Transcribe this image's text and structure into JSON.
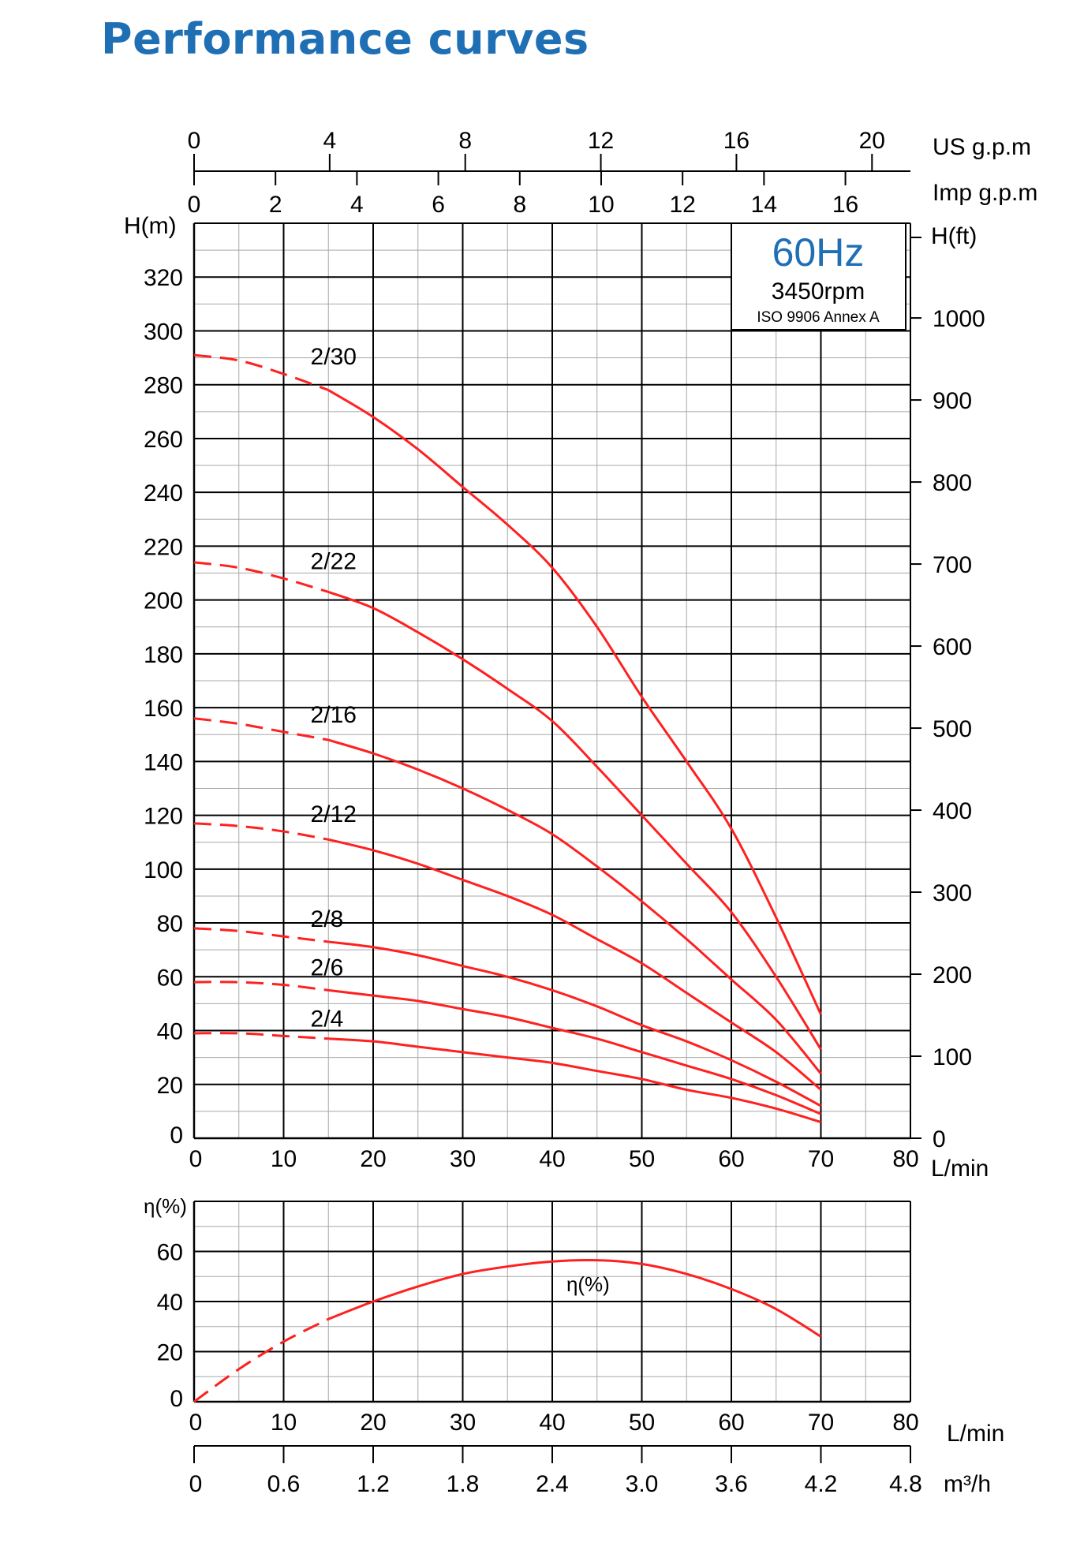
{
  "page": {
    "title": "Performance curves",
    "colors": {
      "title": "#1f6fb5",
      "curve": "#ff2020",
      "grid": "#000000",
      "minor_grid": "#a8a8a8"
    }
  },
  "info_box": {
    "frequency": "60Hz",
    "speed": "3450rpm",
    "standard": "ISO 9906 Annex A"
  },
  "chart_data": [
    {
      "type": "line",
      "title": "",
      "x_unit": "L/min",
      "xlim": [
        0,
        80
      ],
      "x_ticks": [
        0,
        10,
        20,
        30,
        40,
        50,
        60,
        70,
        80
      ],
      "ylabel_left": "H(m)",
      "ylim": [
        0,
        340
      ],
      "y_ticks": [
        0,
        20,
        40,
        60,
        80,
        100,
        120,
        140,
        160,
        180,
        200,
        220,
        240,
        260,
        280,
        300,
        320
      ],
      "ylabel_right": "H(ft)",
      "y_right_ticks": [
        0,
        100,
        200,
        300,
        400,
        500,
        600,
        700,
        800,
        900,
        1000
      ],
      "top_axes": [
        {
          "unit": "US g.p.m",
          "ticks": [
            0,
            4,
            8,
            12,
            16,
            20
          ]
        },
        {
          "unit": "Imp g.p.m",
          "ticks": [
            0,
            2,
            4,
            6,
            8,
            10,
            12,
            14,
            16
          ]
        }
      ],
      "grid": true,
      "dashed_until_x": 15,
      "series": [
        {
          "name": "2/30",
          "x": [
            0,
            5,
            10,
            15,
            20,
            25,
            30,
            35,
            40,
            45,
            50,
            55,
            60,
            65,
            70
          ],
          "y": [
            291,
            289,
            284,
            278,
            268,
            256,
            242,
            228,
            212,
            190,
            164,
            140,
            115,
            82,
            46
          ]
        },
        {
          "name": "2/22",
          "x": [
            0,
            5,
            10,
            15,
            20,
            25,
            30,
            35,
            40,
            45,
            50,
            55,
            60,
            65,
            70
          ],
          "y": [
            214,
            212,
            208,
            203,
            197,
            188,
            178,
            167,
            155,
            138,
            120,
            102,
            84,
            60,
            33
          ]
        },
        {
          "name": "2/16",
          "x": [
            0,
            5,
            10,
            15,
            20,
            25,
            30,
            35,
            40,
            45,
            50,
            55,
            60,
            65,
            70
          ],
          "y": [
            156,
            154,
            151,
            148,
            143,
            137,
            130,
            122,
            113,
            101,
            88,
            74,
            59,
            44,
            24
          ]
        },
        {
          "name": "2/12",
          "x": [
            0,
            5,
            10,
            15,
            20,
            25,
            30,
            35,
            40,
            45,
            50,
            55,
            60,
            65,
            70
          ],
          "y": [
            117,
            116,
            114,
            111,
            107,
            102,
            96,
            90,
            83,
            74,
            65,
            54,
            43,
            32,
            18
          ]
        },
        {
          "name": "2/8",
          "x": [
            0,
            5,
            10,
            15,
            20,
            25,
            30,
            35,
            40,
            45,
            50,
            55,
            60,
            65,
            70
          ],
          "y": [
            78,
            77,
            75,
            73,
            71,
            68,
            64,
            60,
            55,
            49,
            42,
            36,
            29,
            21,
            12
          ]
        },
        {
          "name": "2/6",
          "x": [
            0,
            5,
            10,
            15,
            20,
            25,
            30,
            35,
            40,
            45,
            50,
            55,
            60,
            65,
            70
          ],
          "y": [
            58,
            58,
            57,
            55,
            53,
            51,
            48,
            45,
            41,
            37,
            32,
            27,
            22,
            16,
            9
          ]
        },
        {
          "name": "2/4",
          "x": [
            0,
            5,
            10,
            15,
            20,
            25,
            30,
            35,
            40,
            45,
            50,
            55,
            60,
            65,
            70
          ],
          "y": [
            39,
            39,
            38,
            37,
            36,
            34,
            32,
            30,
            28,
            25,
            22,
            18,
            15,
            11,
            6
          ]
        }
      ]
    },
    {
      "type": "line",
      "title": "",
      "ylabel": "η(%)",
      "x_unit": "L/min",
      "xlim": [
        0,
        80
      ],
      "x_ticks": [
        0,
        10,
        20,
        30,
        40,
        50,
        60,
        70,
        80
      ],
      "ylim": [
        0,
        80
      ],
      "y_ticks": [
        0,
        20,
        40,
        60
      ],
      "bottom_axis": {
        "unit": "m³/h",
        "ticks": [
          "0",
          "0.6",
          "1.2",
          "1.8",
          "2.4",
          "3.0",
          "3.6",
          "4.2",
          "4.8"
        ]
      },
      "grid": true,
      "dashed_until_x": 15,
      "series": [
        {
          "name": "η(%)",
          "x": [
            0,
            5,
            10,
            15,
            20,
            25,
            30,
            35,
            40,
            45,
            50,
            55,
            60,
            65,
            70
          ],
          "y": [
            0,
            13,
            24,
            33,
            40,
            46,
            51,
            54,
            56,
            56.5,
            55,
            51,
            45,
            37,
            26
          ]
        }
      ]
    }
  ]
}
